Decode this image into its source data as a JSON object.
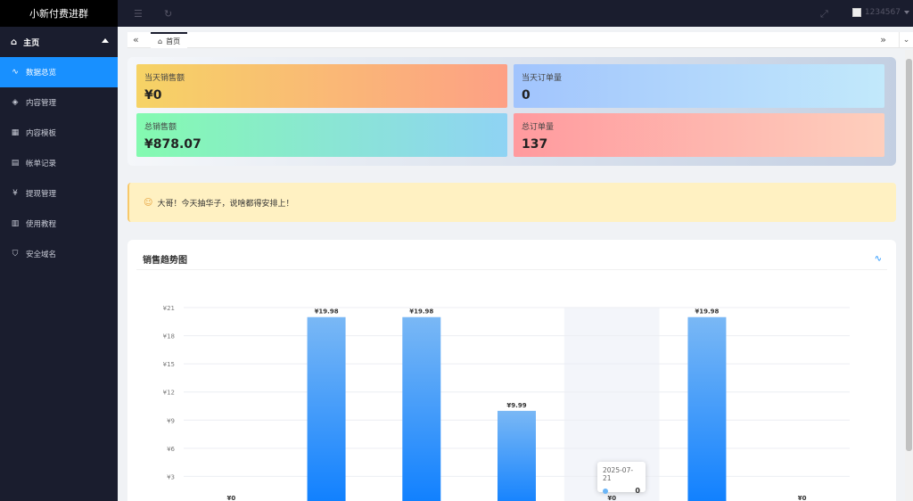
{
  "sidebar": {
    "brand": "小新付费进群",
    "group": {
      "label": "主页",
      "icon": "home-icon"
    },
    "items": [
      {
        "label": "数据总览",
        "icon": "pulse-icon",
        "active": true
      },
      {
        "label": "内容管理",
        "icon": "layers-icon"
      },
      {
        "label": "内容模板",
        "icon": "template-icon"
      },
      {
        "label": "帐单记录",
        "icon": "clipboard-icon"
      },
      {
        "label": "提现管理",
        "icon": "yen-icon"
      },
      {
        "label": "使用教程",
        "icon": "book-icon"
      },
      {
        "label": "安全域名",
        "icon": "shield-icon"
      }
    ]
  },
  "header": {
    "username": "1234567"
  },
  "tabs": {
    "home_label": "首页"
  },
  "stats": {
    "today_sales": {
      "label": "当天销售额",
      "value": "¥0"
    },
    "today_orders": {
      "label": "当天订单量",
      "value": "0"
    },
    "total_sales": {
      "label": "总销售额",
      "value": "¥878.07"
    },
    "total_orders": {
      "label": "总订单量",
      "value": "137"
    }
  },
  "notice": {
    "text": "大哥！今天抽华子，说啥都得安排上！"
  },
  "chart": {
    "title": "销售趋势图"
  },
  "chart_data": {
    "type": "bar",
    "title": "销售趋势图",
    "categories": [
      "",
      "",
      "",
      "",
      "2025-07-21",
      "",
      ""
    ],
    "values": [
      0,
      19.98,
      19.98,
      9.99,
      0,
      19.98,
      0
    ],
    "value_labels": [
      "¥0",
      "¥19.98",
      "¥19.98",
      "¥9.99",
      "¥0",
      "¥19.98",
      "¥0"
    ],
    "yticks": [
      3,
      6,
      9,
      12,
      15,
      18,
      21
    ],
    "ytick_labels": [
      "¥3",
      "¥6",
      "¥9",
      "¥12",
      "¥15",
      "¥18",
      "¥21"
    ],
    "ylim": [
      0,
      21
    ],
    "highlight_index": 4,
    "bar_colors": [
      "#7ab8f5",
      "#0a7dff"
    ],
    "grid": true
  },
  "tooltip": {
    "date": "2025-07-21",
    "value": "0"
  }
}
